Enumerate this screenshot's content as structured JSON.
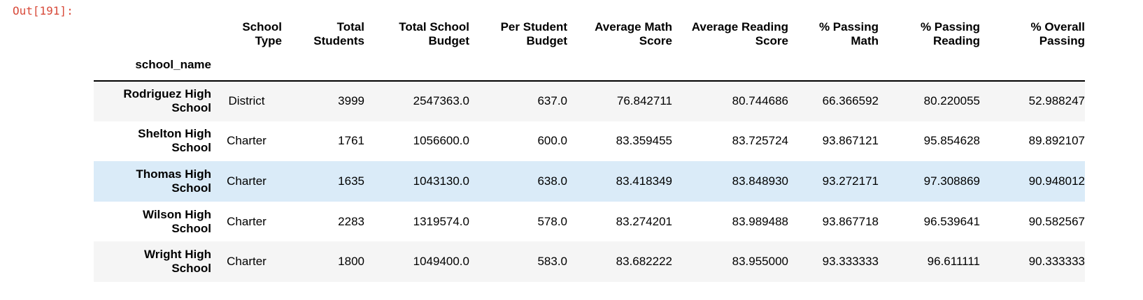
{
  "prompt_label": "Out[191]:",
  "index_name": "school_name",
  "columns": [
    [
      "School",
      "Type"
    ],
    [
      "Total",
      "Students"
    ],
    [
      "Total School",
      "Budget"
    ],
    [
      "Per Student",
      "Budget"
    ],
    [
      "Average Math",
      "Score"
    ],
    [
      "Average Reading",
      "Score"
    ],
    [
      "% Passing",
      "Math"
    ],
    [
      "% Passing",
      "Reading"
    ],
    [
      "% Overall",
      "Passing"
    ]
  ],
  "rows": [
    {
      "name": [
        "Rodriguez High",
        "School"
      ],
      "cells": [
        "District",
        "3999",
        "2547363.0",
        "637.0",
        "76.842711",
        "80.744686",
        "66.366592",
        "80.220055",
        "52.988247"
      ]
    },
    {
      "name": [
        "Shelton High",
        "School"
      ],
      "cells": [
        "Charter",
        "1761",
        "1056600.0",
        "600.0",
        "83.359455",
        "83.725724",
        "93.867121",
        "95.854628",
        "89.892107"
      ]
    },
    {
      "name": [
        "Thomas High",
        "School"
      ],
      "cells": [
        "Charter",
        "1635",
        "1043130.0",
        "638.0",
        "83.418349",
        "83.848930",
        "93.272171",
        "97.308869",
        "90.948012"
      ]
    },
    {
      "name": [
        "Wilson High",
        "School"
      ],
      "cells": [
        "Charter",
        "2283",
        "1319574.0",
        "578.0",
        "83.274201",
        "83.989488",
        "93.867718",
        "96.539641",
        "90.582567"
      ]
    },
    {
      "name": [
        "Wright High",
        "School"
      ],
      "cells": [
        "Charter",
        "1800",
        "1049400.0",
        "583.0",
        "83.682222",
        "83.955000",
        "93.333333",
        "96.611111",
        "90.333333"
      ]
    }
  ],
  "highlighted_row": 2,
  "colors": {
    "prompt": "#d84a3a",
    "stripe": "#f5f5f5",
    "hover": "#daebf8"
  }
}
